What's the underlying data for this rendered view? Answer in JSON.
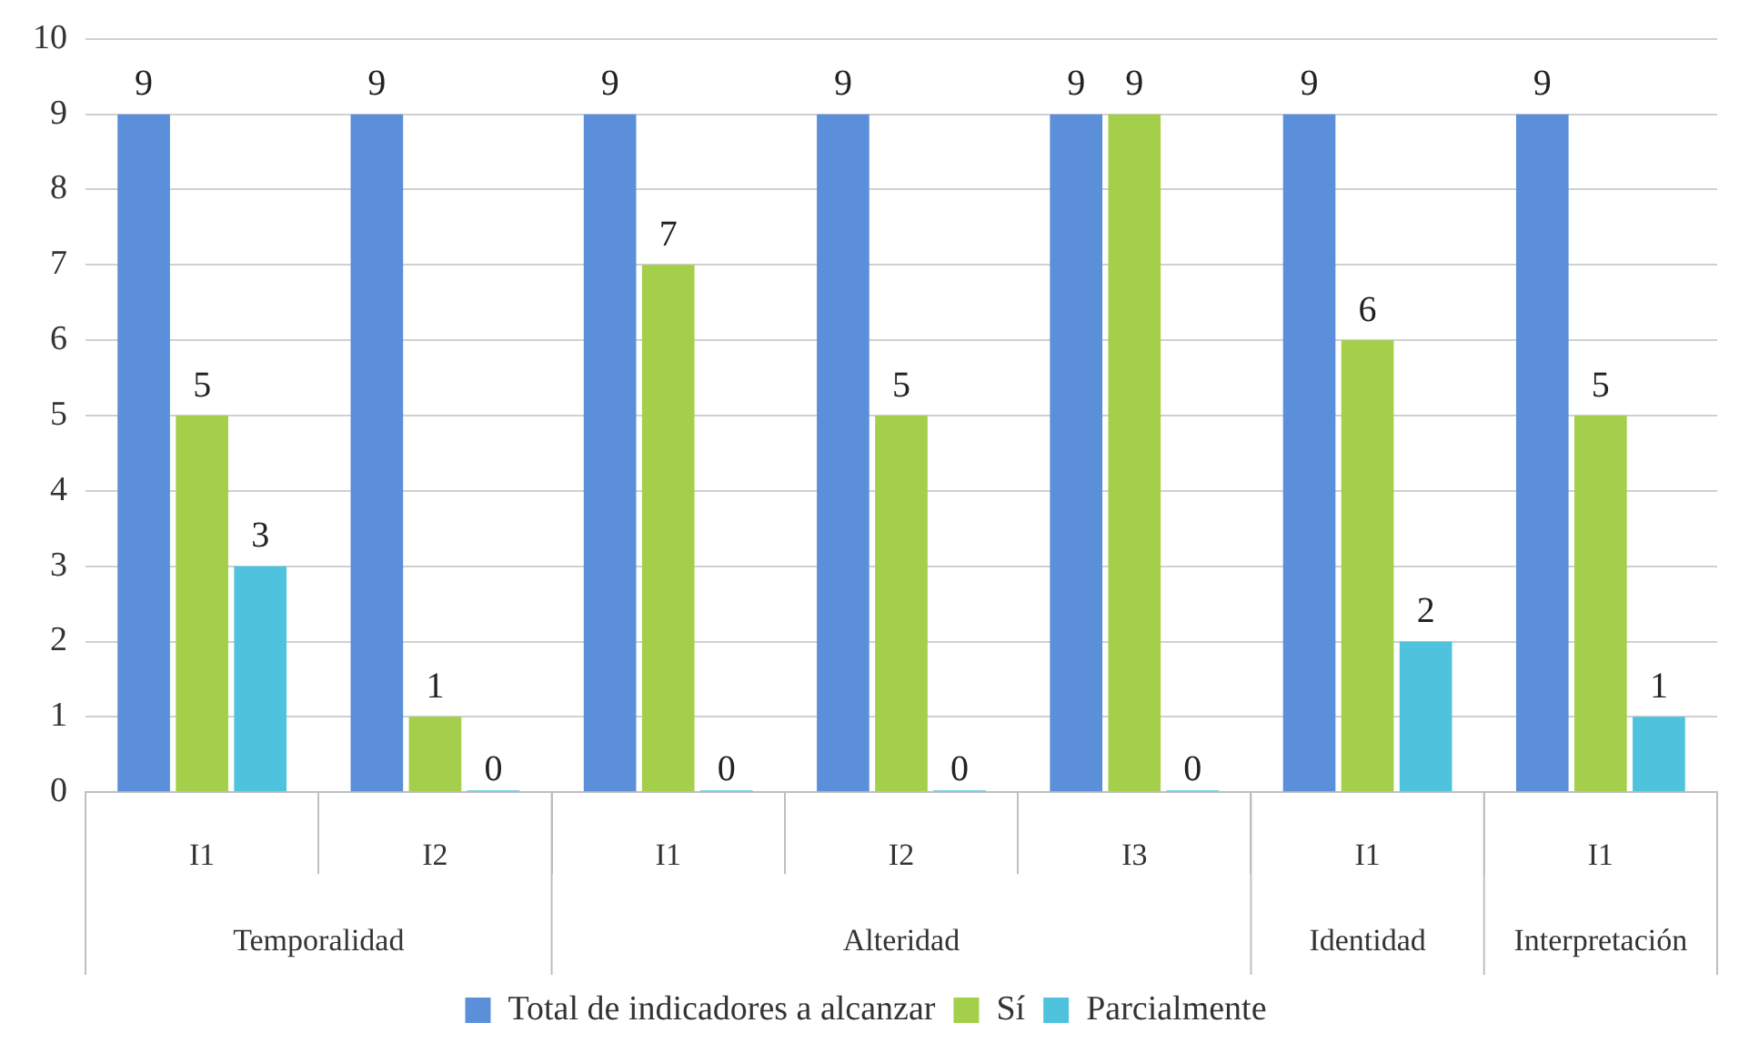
{
  "chart_data": {
    "type": "bar",
    "categories": [
      "I1",
      "I2",
      "I1",
      "I2",
      "I3",
      "I1",
      "I1"
    ],
    "series": [
      {
        "name": "Total de indicadores a alcanzar",
        "color": "#5b8fd9",
        "values": [
          9,
          9,
          9,
          9,
          9,
          9,
          9
        ]
      },
      {
        "name": "Sí",
        "color": "#a4cf4a",
        "values": [
          5,
          1,
          7,
          5,
          9,
          6,
          5
        ]
      },
      {
        "name": "Parcialmente",
        "color": "#4fc3dd",
        "values": [
          3,
          0,
          0,
          0,
          0,
          2,
          1
        ]
      }
    ],
    "annotations": [
      "Temporalidad",
      "Alteridad",
      "Identidad",
      "Interpretación"
    ],
    "ylim": [
      0,
      10
    ],
    "yticks": [
      0,
      1,
      2,
      3,
      4,
      5,
      6,
      7,
      8,
      9,
      10
    ],
    "grid": "y",
    "legend": "bottom",
    "data_labels": true
  }
}
